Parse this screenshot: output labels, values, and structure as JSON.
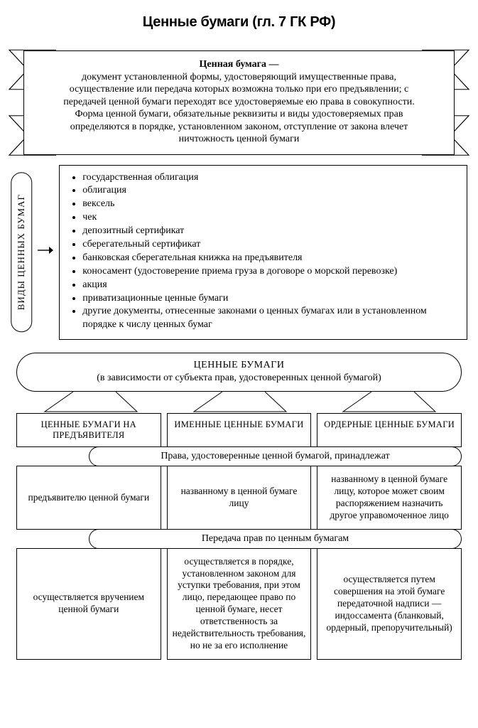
{
  "page": {
    "title": "Ценные бумаги (гл. 7 ГК РФ)"
  },
  "banner": {
    "heading": "Ценная бумага —",
    "body": "документ установленной формы, удостоверяющий имущественные права, осуществление или передача которых возможна только при его предъявлении; с передачей ценной бумаги переходят все удостоверяемые ею права в совокупности. Форма ценной бумаги, обязательные реквизиты и виды удостоверяемых прав определяются в порядке, установленном законом, отступление от закона влечет ничтожность ценной бумаги"
  },
  "types": {
    "side_label": "ВИДЫ  ЦЕННЫХ БУМАГ",
    "items": [
      "государственная облигация",
      "облигация",
      "вексель",
      "чек",
      "депозитный сертификат",
      "сберегательный сертификат",
      "банковская сберегательная книжка на предъявителя",
      "коносамент (удостоверение приема груза в договоре о морской перевозке)",
      "акция",
      "приватизационные ценные бумаги",
      "другие документы, отнесенные законами о ценных бумагах или в установленном порядке к числу ценных бумаг"
    ]
  },
  "classification": {
    "header_line1": "ЦЕННЫЕ БУМАГИ",
    "header_line2": "(в зависимости от субъекта прав, удостоверенных ценной бумагой)",
    "columns": [
      {
        "title": "ЦЕННЫЕ БУМАГИ НА ПРЕДЪЯВИТЕЛЯ"
      },
      {
        "title": "ИМЕННЫЕ ЦЕННЫЕ БУМАГИ"
      },
      {
        "title": "ОРДЕРНЫЕ ЦЕННЫЕ БУМАГИ"
      }
    ],
    "row_labels": {
      "rights": "Права, удостоверенные ценной бумагой, принадлежат",
      "transfer": "Передача прав по ценным бумагам"
    },
    "rights_cells": [
      "предъявителю ценной бумаги",
      "названному в ценной бумаге лицу",
      "названному в ценной бумаге лицу, которое может своим распоряжением назначить другое управомоченное лицо"
    ],
    "transfer_cells": [
      "осуществляется вручением ценной бумаги",
      "осуществляется в порядке, установленном законом для уступки требования, при этом лицо, передающее право по ценной бумаге, несет ответственность за недействительность требования, но не за его исполнение",
      "осуществляется путем совершения на этой бумаге передаточной надписи — индоссамента (бланковый, ордерный, препоручительный)"
    ]
  },
  "style": {
    "stroke": "#000000",
    "bg": "#ffffff"
  }
}
